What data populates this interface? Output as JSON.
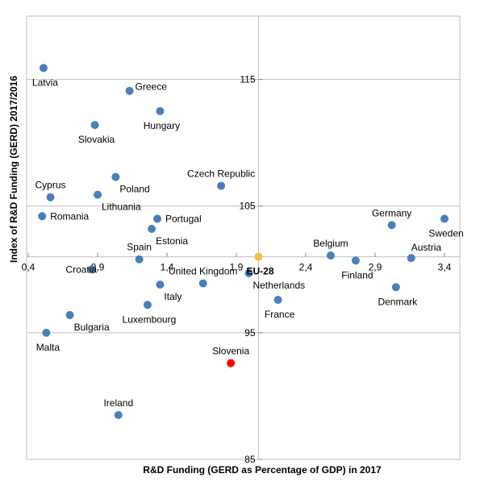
{
  "chart_data": {
    "type": "scatter",
    "title": "",
    "xlabel": "R&D Funding  (GERD as Percentage of GDP) in 2017",
    "ylabel": "Index of R&D  Funding (GERD) 2017/2016",
    "xlim": [
      0.4,
      3.4
    ],
    "ylim": [
      85,
      120
    ],
    "x_ticks": [
      {
        "value": 0.4,
        "label": "0,4"
      },
      {
        "value": 0.9,
        "label": "0,9"
      },
      {
        "value": 1.4,
        "label": "1,4"
      },
      {
        "value": 1.9,
        "label": "1,9"
      },
      {
        "value": 2.4,
        "label": "2,4"
      },
      {
        "value": 2.9,
        "label": "2,9"
      },
      {
        "value": 3.4,
        "label": "3,4"
      }
    ],
    "y_ticks": [
      {
        "value": 85,
        "label": "85"
      },
      {
        "value": 95,
        "label": "95"
      },
      {
        "value": 105,
        "label": "105"
      },
      {
        "value": 115,
        "label": "115"
      }
    ],
    "crosshair": {
      "x": 2.06,
      "y": 101.0
    },
    "grid": true,
    "colors": {
      "default": "#4a7ebb",
      "eu": "#f5c242",
      "highlight": "#ff0000",
      "grid": "#bfbfbf"
    },
    "points": [
      {
        "name": "Latvia",
        "x": 0.51,
        "y": 115.9,
        "color": "default",
        "label_pos": "below"
      },
      {
        "name": "Greece",
        "x": 1.13,
        "y": 114.1,
        "color": "default",
        "label_pos": "right-up"
      },
      {
        "name": "Hungary",
        "x": 1.35,
        "y": 112.5,
        "color": "default",
        "label_pos": "below"
      },
      {
        "name": "Slovakia",
        "x": 0.88,
        "y": 111.4,
        "color": "default",
        "label_pos": "below"
      },
      {
        "name": "Poland",
        "x": 1.03,
        "y": 107.3,
        "color": "default",
        "label_pos": "below-right"
      },
      {
        "name": "Cyprus",
        "x": 0.56,
        "y": 105.7,
        "color": "default",
        "label_pos": "above"
      },
      {
        "name": "Lithuania",
        "x": 0.9,
        "y": 105.9,
        "color": "default",
        "label_pos": "below-right"
      },
      {
        "name": "Czech Republic",
        "x": 1.79,
        "y": 106.6,
        "color": "default",
        "label_pos": "above"
      },
      {
        "name": "Romania",
        "x": 0.5,
        "y": 104.2,
        "color": "default",
        "label_pos": "right"
      },
      {
        "name": "Portugal",
        "x": 1.33,
        "y": 104.0,
        "color": "default",
        "label_pos": "right"
      },
      {
        "name": "Estonia",
        "x": 1.29,
        "y": 103.2,
        "color": "default",
        "label_pos": "below-right"
      },
      {
        "name": "Germany",
        "x": 3.02,
        "y": 103.5,
        "color": "default",
        "label_pos": "above"
      },
      {
        "name": "Sweden",
        "x": 3.4,
        "y": 104.0,
        "color": "default",
        "label_pos": "below"
      },
      {
        "name": "Belgium",
        "x": 2.58,
        "y": 101.1,
        "color": "default",
        "label_pos": "above"
      },
      {
        "name": "Austria",
        "x": 3.16,
        "y": 100.9,
        "color": "default",
        "label_pos": "above-right"
      },
      {
        "name": "Finland",
        "x": 2.76,
        "y": 100.7,
        "color": "default",
        "label_pos": "below"
      },
      {
        "name": "Spain",
        "x": 1.2,
        "y": 100.8,
        "color": "default",
        "label_pos": "above"
      },
      {
        "name": "Croatia",
        "x": 0.86,
        "y": 100.0,
        "color": "default",
        "label_pos": "left"
      },
      {
        "name": "EU-28",
        "x": 2.06,
        "y": 101.0,
        "color": "eu",
        "label_pos": "below"
      },
      {
        "name": "United Kingdom",
        "x": 1.66,
        "y": 98.9,
        "color": "default",
        "label_pos": "above"
      },
      {
        "name": "Netherlands",
        "x": 1.99,
        "y": 99.7,
        "color": "default",
        "label_pos": "below-right"
      },
      {
        "name": "Italy",
        "x": 1.35,
        "y": 98.8,
        "color": "default",
        "label_pos": "below-right"
      },
      {
        "name": "Denmark",
        "x": 3.05,
        "y": 98.6,
        "color": "default",
        "label_pos": "below"
      },
      {
        "name": "France",
        "x": 2.2,
        "y": 97.6,
        "color": "default",
        "label_pos": "below"
      },
      {
        "name": "Luxembourg",
        "x": 1.26,
        "y": 97.2,
        "color": "default",
        "label_pos": "below"
      },
      {
        "name": "Bulgaria",
        "x": 0.7,
        "y": 96.4,
        "color": "default",
        "label_pos": "below-right"
      },
      {
        "name": "Malta",
        "x": 0.53,
        "y": 95.0,
        "color": "default",
        "label_pos": "below"
      },
      {
        "name": "Slovenia",
        "x": 1.86,
        "y": 92.6,
        "color": "highlight",
        "label_pos": "above"
      },
      {
        "name": "Ireland",
        "x": 1.05,
        "y": 88.5,
        "color": "default",
        "label_pos": "above"
      }
    ]
  }
}
